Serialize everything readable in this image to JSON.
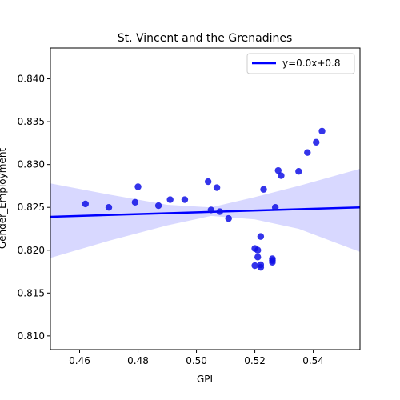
{
  "chart_data": {
    "type": "scatter",
    "title": "St. Vincent and the Grenadines",
    "xlabel": "GPI",
    "ylabel": "Gender_Employment",
    "xlim": [
      0.45,
      0.556
    ],
    "ylim": [
      0.8084,
      0.8436
    ],
    "xticks": [
      0.46,
      0.48,
      0.5,
      0.52,
      0.54
    ],
    "xtick_labels": [
      "0.46",
      "0.48",
      "0.50",
      "0.52",
      "0.54"
    ],
    "yticks": [
      0.81,
      0.815,
      0.82,
      0.825,
      0.83,
      0.835,
      0.84
    ],
    "ytick_labels": [
      "0.810",
      "0.815",
      "0.820",
      "0.825",
      "0.830",
      "0.835",
      "0.840"
    ],
    "grid": false,
    "legend_position": "top-right",
    "legend_label": "y=0.0x+0.8",
    "point_color": "#1010e6",
    "line_color": "#0000ff",
    "band_color": "#d8d8ff",
    "points": [
      {
        "x": 0.462,
        "y": 0.8254
      },
      {
        "x": 0.47,
        "y": 0.825
      },
      {
        "x": 0.479,
        "y": 0.8256
      },
      {
        "x": 0.48,
        "y": 0.8274
      },
      {
        "x": 0.487,
        "y": 0.8252
      },
      {
        "x": 0.491,
        "y": 0.8259
      },
      {
        "x": 0.496,
        "y": 0.8259
      },
      {
        "x": 0.504,
        "y": 0.828
      },
      {
        "x": 0.505,
        "y": 0.8247
      },
      {
        "x": 0.507,
        "y": 0.8273
      },
      {
        "x": 0.508,
        "y": 0.8245
      },
      {
        "x": 0.511,
        "y": 0.8237
      },
      {
        "x": 0.52,
        "y": 0.8202
      },
      {
        "x": 0.52,
        "y": 0.8182
      },
      {
        "x": 0.521,
        "y": 0.8192
      },
      {
        "x": 0.521,
        "y": 0.82
      },
      {
        "x": 0.522,
        "y": 0.8183
      },
      {
        "x": 0.522,
        "y": 0.818
      },
      {
        "x": 0.522,
        "y": 0.8216
      },
      {
        "x": 0.523,
        "y": 0.8271
      },
      {
        "x": 0.526,
        "y": 0.819
      },
      {
        "x": 0.526,
        "y": 0.8188
      },
      {
        "x": 0.526,
        "y": 0.8186
      },
      {
        "x": 0.527,
        "y": 0.825
      },
      {
        "x": 0.528,
        "y": 0.8293
      },
      {
        "x": 0.529,
        "y": 0.8287
      },
      {
        "x": 0.535,
        "y": 0.8292
      },
      {
        "x": 0.538,
        "y": 0.8314
      },
      {
        "x": 0.541,
        "y": 0.8326
      },
      {
        "x": 0.543,
        "y": 0.8339
      }
    ],
    "regression": {
      "x": [
        0.45,
        0.556
      ],
      "y": [
        0.8239,
        0.825
      ]
    },
    "confidence_band": {
      "x": [
        0.45,
        0.47,
        0.49,
        0.505,
        0.52,
        0.535,
        0.556
      ],
      "upper": [
        0.8278,
        0.8265,
        0.8253,
        0.825,
        0.8262,
        0.8275,
        0.8295
      ],
      "lower": [
        0.8191,
        0.8211,
        0.8229,
        0.824,
        0.8236,
        0.8225,
        0.8198
      ]
    }
  }
}
